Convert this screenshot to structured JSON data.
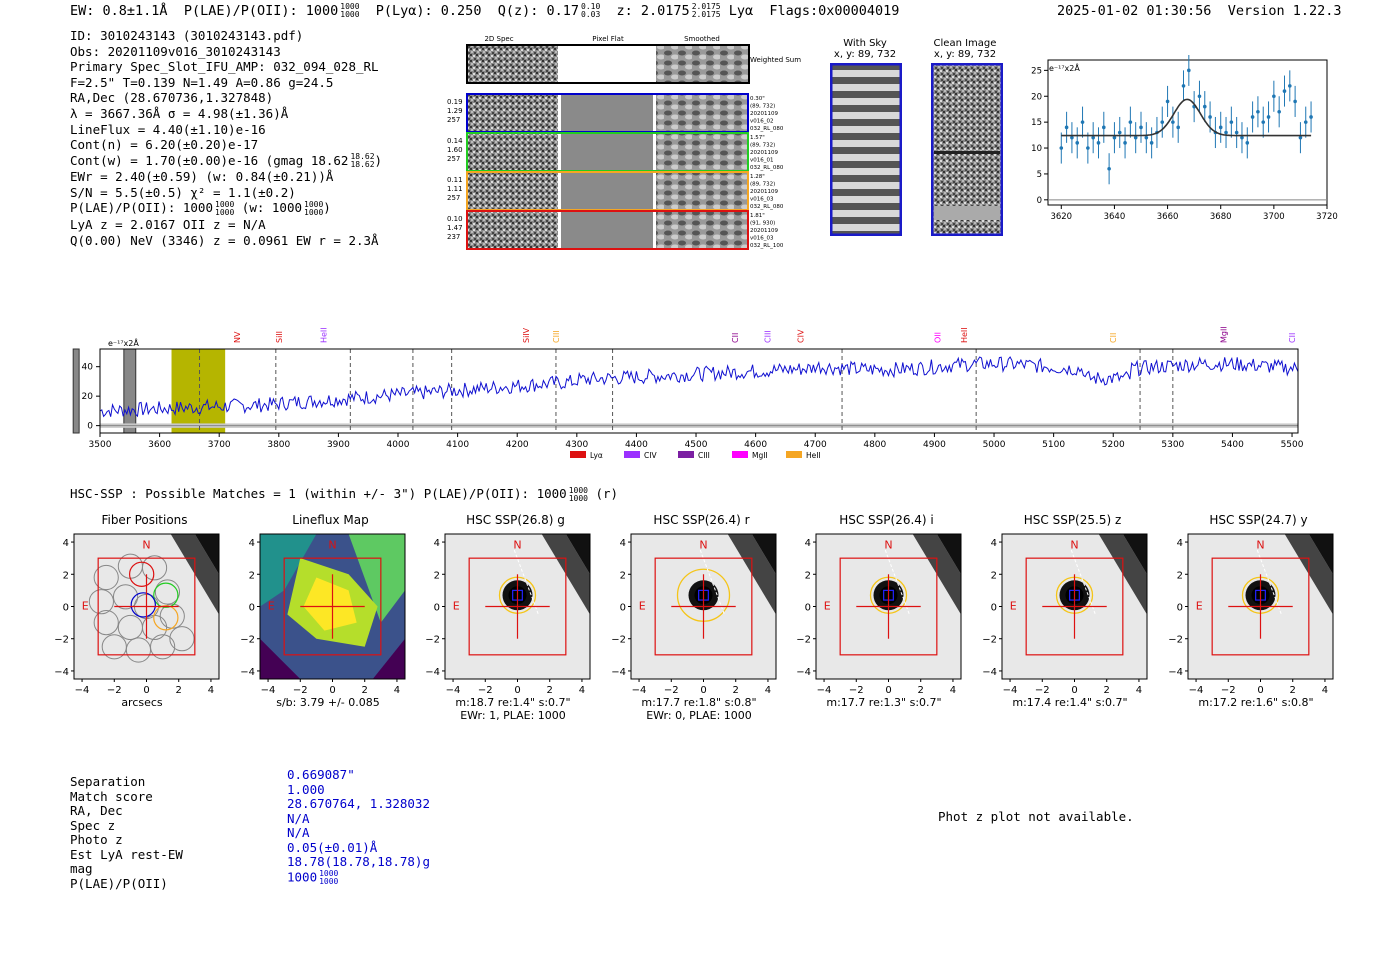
{
  "header": {
    "ew": "EW: 0.8±1.1Å",
    "plae_label": "P(LAE)/P(OII): 1000",
    "plae_hi": "1000",
    "plae_lo": "1000",
    "plya": "P(Lyα): 0.250",
    "qz_label": "Q(z): 0.17",
    "qz_hi": "0.10",
    "qz_lo": "0.03",
    "z_label": "z: 2.0175",
    "z_hi": "2.0175",
    "z_lo": "2.0175",
    "z_line": "Lyα",
    "flags": "Flags:0x00004019",
    "datetime": "2025-01-02 01:30:56",
    "version": "Version 1.22.3"
  },
  "info": {
    "id": "ID: 3010243143 (3010243143.pdf)",
    "obs": "Obs: 20201109v016_3010243143",
    "primary": "Primary Spec_Slot_IFU_AMP: 032_094_028_RL",
    "params": "F=2.5\"  T=0.139  N=1.49  A=0.86  g=24.5",
    "radec": "RA,Dec (28.670736,1.327848)",
    "lambda": "λ = 3667.36Å  σ = 4.98(±1.36)Å",
    "lineflux": "LineFlux = 4.40(±1.10)e-16",
    "contn": "Cont(n) = 6.20(±0.20)e-17",
    "contw": "Cont(w) = 1.70(±0.00)e-16 (gmag 18.62",
    "contw_hi": "18.62",
    "contw_lo": "18.62",
    "ewr": "EWr = 2.40(±0.59) (w: 0.84(±0.21))Å",
    "sn": "S/N = 5.5(±0.5)  χ² = 1.1(±0.2)",
    "plae": "P(LAE)/P(OII): 1000",
    "plae_hi": "1000",
    "plae_lo": "1000",
    "plae_w": "(w: 1000",
    "plae_w_hi": "1000",
    "plae_w_lo": "1000",
    "lya_z": "LyA z = 2.0167  OII z = N/A",
    "q_line": "Q(0.00) NeV (3346) z = 0.0961  EW r = 2.3Å"
  },
  "cutouts": {
    "col_2d": "2D Spec",
    "col_flat": "Pixel Flat",
    "col_smooth": "Smoothed",
    "weighted": "Weighted Sum",
    "rows": [
      {
        "vals": [
          "0.19",
          "1.29",
          "257"
        ],
        "meta": [
          "0.30\"",
          "(89, 732)",
          "20201109",
          "v016_02",
          "032_RL_080"
        ],
        "color": "#0000cc"
      },
      {
        "vals": [
          "0.14",
          "1.60",
          "257"
        ],
        "meta": [
          "1.57\"",
          "(89, 732)",
          "20201109",
          "v016_01",
          "032_RL_080"
        ],
        "color": "#22cc22"
      },
      {
        "vals": [
          "0.11",
          "1.11",
          "257"
        ],
        "meta": [
          "1.28\"",
          "(89, 732)",
          "20201109",
          "v016_03",
          "032_RL_080"
        ],
        "color": "#f5a623"
      },
      {
        "vals": [
          "0.10",
          "1.47",
          "237"
        ],
        "meta": [
          "1.81\"",
          "(91, 930)",
          "20201109",
          "v016_03",
          "032_RL_100"
        ],
        "color": "#dd1111"
      }
    ],
    "with_sky": "With Sky",
    "with_sky_xy": "x, y: 89, 732",
    "clean": "Clean Image",
    "clean_xy": "x, y: 89, 732"
  },
  "chart_data": [
    {
      "type": "scatter",
      "name": "zoom-spectrum",
      "ylabel_text": "e⁻¹⁷x2Å",
      "xlim": [
        3615,
        3720
      ],
      "ylim": [
        -1,
        27
      ],
      "xticks": [
        3620,
        3640,
        3660,
        3680,
        3700,
        3720
      ],
      "yticks": [
        0,
        5,
        10,
        15,
        20,
        25
      ],
      "x": [
        3620,
        3622,
        3624,
        3626,
        3628,
        3630,
        3632,
        3634,
        3636,
        3638,
        3640,
        3642,
        3644,
        3646,
        3648,
        3650,
        3652,
        3654,
        3656,
        3658,
        3660,
        3662,
        3664,
        3666,
        3668,
        3670,
        3672,
        3674,
        3676,
        3678,
        3680,
        3682,
        3684,
        3686,
        3688,
        3690,
        3692,
        3694,
        3696,
        3698,
        3700,
        3702,
        3704,
        3706,
        3708,
        3710,
        3712,
        3714
      ],
      "y": [
        10,
        14,
        12,
        11,
        15,
        10,
        12,
        11,
        14,
        6,
        12,
        13,
        11,
        15,
        12,
        14,
        12,
        11,
        13,
        15,
        19,
        15,
        14,
        22,
        25,
        18,
        20,
        18,
        16,
        13,
        14,
        13,
        15,
        13,
        12,
        11,
        16,
        17,
        15,
        16,
        20,
        17,
        21,
        22,
        19,
        12,
        15,
        16
      ],
      "err": [
        3,
        3,
        3,
        3,
        3,
        3,
        3,
        3,
        3,
        3,
        3,
        3,
        3,
        3,
        3,
        3,
        3,
        3,
        3,
        3,
        3,
        3,
        3,
        3,
        3,
        3,
        3,
        3,
        3,
        3,
        3,
        3,
        3,
        3,
        3,
        3,
        3,
        3,
        3,
        3,
        3,
        3,
        3,
        3,
        3,
        3,
        3,
        3
      ],
      "fit": {
        "center": 3667.36,
        "sigma": 4.98,
        "baseline": 12.4,
        "amplitude": 7.0
      }
    },
    {
      "type": "line",
      "name": "full-spectrum",
      "ylabel_text": "e⁻¹⁷x2Å",
      "xlim": [
        3500,
        5510
      ],
      "ylim": [
        -5,
        52
      ],
      "xticks": [
        3500,
        3600,
        3700,
        3800,
        3900,
        4000,
        4100,
        4200,
        4300,
        4400,
        4500,
        4600,
        4700,
        4800,
        4900,
        5000,
        5100,
        5200,
        5300,
        5400,
        5500
      ],
      "yticks": [
        0,
        20,
        40
      ],
      "lines": [
        {
          "label": "NV",
          "x": 3730,
          "color": "#dd1111"
        },
        {
          "label": "SiII",
          "x": 3800,
          "color": "#dd1111"
        },
        {
          "label": "HeII",
          "x": 3875,
          "color": "#9b30ff"
        },
        {
          "label": "SiIV",
          "x": 4215,
          "color": "#dd1111"
        },
        {
          "label": "CIII",
          "x": 4265,
          "color": "#f5a623"
        },
        {
          "label": "CII",
          "x": 4565,
          "color": "#8b008b"
        },
        {
          "label": "CIII",
          "x": 4620,
          "color": "#9b30ff"
        },
        {
          "label": "CIV",
          "x": 4675,
          "color": "#dd1111"
        },
        {
          "label": "OII",
          "x": 4905,
          "color": "#ff00ff"
        },
        {
          "label": "HeII",
          "x": 4950,
          "color": "#dd1111"
        },
        {
          "label": "CII",
          "x": 5200,
          "color": "#f5a623"
        },
        {
          "label": "MgII",
          "x": 5385,
          "color": "#8b008b"
        },
        {
          "label": "CII",
          "x": 5500,
          "color": "#9b30ff"
        }
      ],
      "dashed": [
        3667,
        3795,
        3920,
        4025,
        4090,
        4265,
        4360,
        4745,
        4970,
        5245,
        5300
      ],
      "highlight": [
        3620,
        3710
      ],
      "hatched": [
        [
          3540,
          3560
        ],
        [
          3455,
          3465
        ]
      ],
      "legend": [
        {
          "label": "Lyα",
          "color": "#dd1111"
        },
        {
          "label": "CIV",
          "color": "#9b30ff"
        },
        {
          "label": "CIII",
          "color": "#7b1fa2"
        },
        {
          "label": "MgII",
          "color": "#ff00ff"
        },
        {
          "label": "HeII",
          "color": "#f5a623"
        }
      ]
    }
  ],
  "hsc": {
    "title": "HSC-SSP : Possible Matches = 1 (within +/- 3\")  P(LAE)/P(OII): 1000",
    "title_hi": "1000",
    "title_lo": "1000",
    "title_suffix": "(r)",
    "panels": [
      {
        "title": "Fiber Positions",
        "cap1": "arcsecs",
        "cap2": ""
      },
      {
        "title": "Lineflux Map",
        "cap1": "s/b: 3.79 +/- 0.085",
        "cap2": ""
      },
      {
        "title": "HSC SSP(26.8) g",
        "cap1": "m:18.7  re:1.4\"  s:0.7\"",
        "cap2": "EWr: 1, PLAE: 1000"
      },
      {
        "title": "HSC SSP(26.4) r",
        "cap1": "m:17.7  re:1.8\"  s:0.8\"",
        "cap2": "EWr: 0, PLAE: 1000"
      },
      {
        "title": "HSC SSP(26.4) i",
        "cap1": "m:17.7  re:1.3\"  s:0.7\"",
        "cap2": ""
      },
      {
        "title": "HSC SSP(25.5) z",
        "cap1": "m:17.4  re:1.4\"  s:0.7\"",
        "cap2": ""
      },
      {
        "title": "HSC SSP(24.7) y",
        "cap1": "m:17.2  re:1.6\"  s:0.8\"",
        "cap2": ""
      }
    ],
    "axis_ticks": [
      "4",
      "2",
      "0",
      "−2",
      "−4"
    ],
    "n_label": "N",
    "e_label": "E"
  },
  "summary": {
    "labels": [
      "Separation",
      "Match score",
      "RA, Dec",
      "Spec z",
      "Photo z",
      "Est LyA rest-EW",
      "mag",
      "P(LAE)/P(OII)"
    ],
    "values": [
      "0.669087\"",
      "1.000",
      "28.670764, 1.328032",
      "N/A",
      "N/A",
      "0.05(±0.01)Å",
      "18.78(18.78,18.78)g",
      "1000"
    ],
    "plae_hi": "1000",
    "plae_lo": "1000",
    "photz_msg": "Phot z plot not available."
  }
}
